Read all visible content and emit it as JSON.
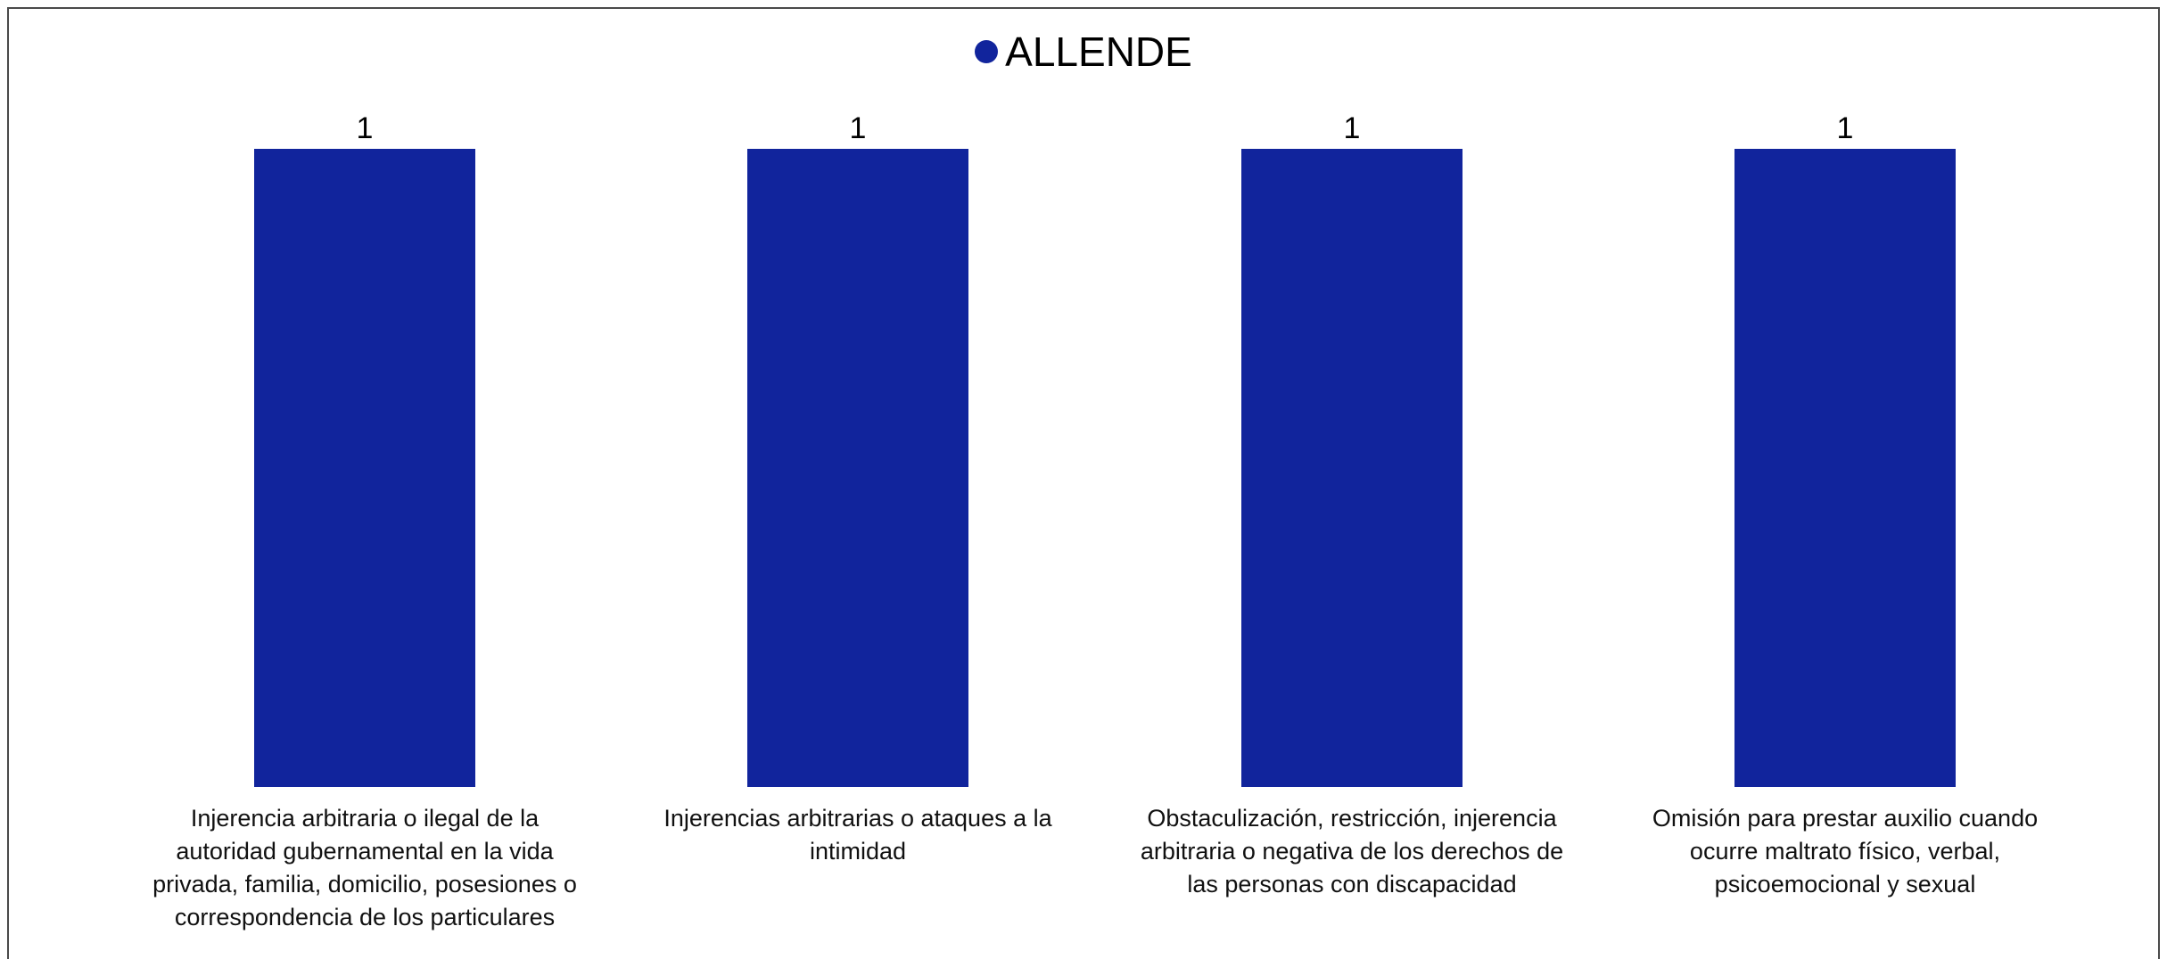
{
  "chart_data": {
    "type": "bar",
    "title": "",
    "categories": [
      "Injerencia arbitraria o ilegal de la autoridad gubernamental en la vida privada, familia, domicilio, posesiones o correspondencia de los particulares",
      "Injerencias arbitrarias o ataques a la intimidad",
      "Obstaculización, restricción, injerencia arbitraria o negativa de los derechos de las personas con discapacidad",
      "Omisión para prestar auxilio cuando ocurre maltrato físico, verbal, psicoemocional y sexual"
    ],
    "series": [
      {
        "name": "ALLENDE",
        "values": [
          1,
          1,
          1,
          1
        ],
        "color": "#11249c"
      }
    ],
    "data_labels": [
      "1",
      "1",
      "1",
      "1"
    ],
    "ylim": [
      0,
      1
    ],
    "grid": false,
    "legend": "top-center"
  }
}
